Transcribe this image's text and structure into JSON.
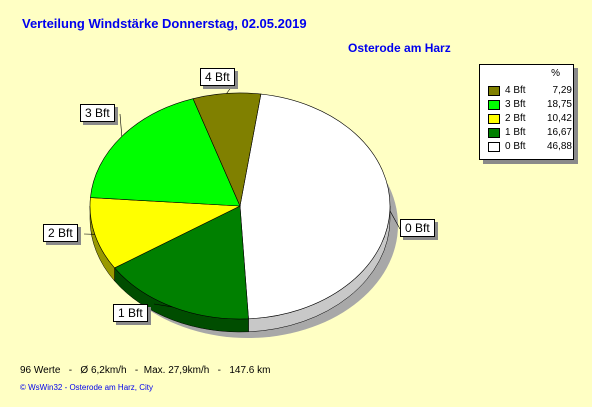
{
  "header": {
    "title": "Verteilung Windstärke  Donnerstag, 02.05.2019",
    "location": "Osterode am Harz"
  },
  "legend": {
    "heading": "%",
    "entries": [
      {
        "label": "4 Bft",
        "value": "7,29",
        "color": "#808000"
      },
      {
        "label": "3 Bft",
        "value": "18,75",
        "color": "#00ff00"
      },
      {
        "label": "2 Bft",
        "value": "10,42",
        "color": "#ffff00"
      },
      {
        "label": "1 Bft",
        "value": "16,67",
        "color": "#008000"
      },
      {
        "label": "0 Bft",
        "value": "46,88",
        "color": "#ffffff"
      }
    ]
  },
  "chart_data": {
    "type": "pie",
    "title": "Verteilung Windstärke  Donnerstag, 02.05.2019",
    "slices": [
      {
        "label": "0 Bft",
        "value": 46.88,
        "color": "#ffffff"
      },
      {
        "label": "1 Bft",
        "value": 16.67,
        "color": "#008000"
      },
      {
        "label": "2 Bft",
        "value": 10.42,
        "color": "#ffff00"
      },
      {
        "label": "3 Bft",
        "value": 18.75,
        "color": "#00ff00"
      },
      {
        "label": "4 Bft",
        "value": 7.29,
        "color": "#808000"
      }
    ],
    "legend_position": "top-right",
    "three_d": true
  },
  "footer": {
    "stats": "96 Werte   -   Ø 6,2km/h   -  Max. 27,9km/h   -   147.6 km",
    "copyright": "© WsWin32   -   Osterode am Harz, City"
  }
}
